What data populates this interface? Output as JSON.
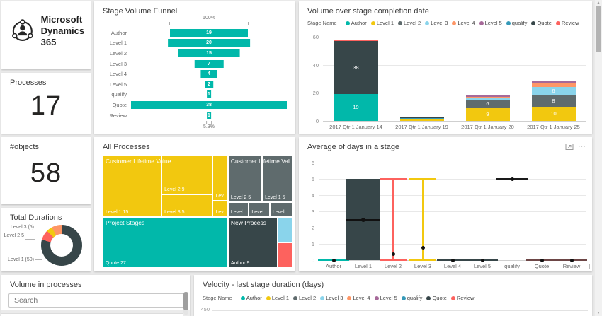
{
  "icons": {
    "up": "▲",
    "down": "▼",
    "more_options": "⋯"
  },
  "logo_tile": {
    "brand_line1": "Microsoft",
    "brand_line2": "Dynamics 365"
  },
  "processes_tile": {
    "title": "Processes",
    "value": "17"
  },
  "objects_tile": {
    "title": "#objects",
    "value": "58"
  },
  "durations_tile": {
    "title": "Total Durations"
  },
  "funnel_tile": {
    "title": "Stage Volume Funnel"
  },
  "volume_tile": {
    "title": "Volume over stage completion date",
    "legend_title": "Stage Name"
  },
  "all_processes_tile": {
    "title": "All Processes"
  },
  "avg_tile": {
    "title": "Average of days in a stage"
  },
  "search_tile": {
    "title": "Volume in processes",
    "search_placeholder": "Search"
  },
  "velocity_tile": {
    "title": "Velocity - last stage duration (days)",
    "legend_title": "Stage Name",
    "y_top_label": "450"
  },
  "stages": [
    {
      "name": "Author",
      "color": "#01B8AA"
    },
    {
      "name": "Level 1",
      "color": "#F2C80F"
    },
    {
      "name": "Level 2",
      "color": "#5F6B6D"
    },
    {
      "name": "Level 3",
      "color": "#8AD4EB"
    },
    {
      "name": "Level 4",
      "color": "#FE9666"
    },
    {
      "name": "Level 5",
      "color": "#A66999"
    },
    {
      "name": "qualify",
      "color": "#3599B8"
    },
    {
      "name": "Quote",
      "color": "#374649"
    },
    {
      "name": "Review",
      "color": "#FD625E"
    }
  ],
  "chart_data": [
    {
      "id": "stage-volume-funnel",
      "type": "bar",
      "subtype": "funnel",
      "title": "Stage Volume Funnel",
      "categories": [
        "Author",
        "Level 1",
        "Level 2",
        "Level 3",
        "Level 4",
        "Level 5",
        "qualify",
        "Quote",
        "Review"
      ],
      "values": [
        19,
        20,
        15,
        7,
        4,
        2,
        1,
        38,
        1
      ],
      "bar_color": "#01B8AA",
      "top_annotation": "100%",
      "bottom_annotation": "5.3%"
    },
    {
      "id": "volume-over-stage-completion-date",
      "type": "bar",
      "subtype": "stacked-column",
      "title": "Volume over stage completion date",
      "legend_title": "Stage Name",
      "legend_position": "top",
      "categories": [
        "2017 Qtr 1 January 14",
        "2017 Qtr 1 January 19",
        "2017 Qtr 1 January 20",
        "2017 Qtr 1 January 25"
      ],
      "series": [
        {
          "name": "Author",
          "color": "#01B8AA",
          "values": [
            19,
            0,
            0,
            0
          ]
        },
        {
          "name": "Level 1",
          "color": "#F2C80F",
          "values": [
            0,
            1,
            9,
            10
          ]
        },
        {
          "name": "Level 2",
          "color": "#5F6B6D",
          "values": [
            0,
            0,
            6,
            8
          ]
        },
        {
          "name": "Level 3",
          "color": "#8AD4EB",
          "values": [
            0,
            0,
            1,
            6
          ]
        },
        {
          "name": "Level 4",
          "color": "#FE9666",
          "values": [
            0,
            0,
            1,
            3
          ]
        },
        {
          "name": "Level 5",
          "color": "#A66999",
          "values": [
            0,
            0,
            1,
            1
          ]
        },
        {
          "name": "qualify",
          "color": "#3599B8",
          "values": [
            0,
            1,
            0,
            0
          ]
        },
        {
          "name": "Quote",
          "color": "#374649",
          "values": [
            38,
            1,
            0,
            0
          ]
        },
        {
          "name": "Review",
          "color": "#FD625E",
          "values": [
            1,
            0,
            0,
            0
          ]
        }
      ],
      "ylim": [
        0,
        60
      ],
      "yticks": [
        0,
        20,
        40,
        60
      ],
      "grid": true
    },
    {
      "id": "all-processes-treemap",
      "type": "treemap",
      "title": "All Processes",
      "groups": [
        "Customer Lifetime Value",
        "Customer Lifetime Val...",
        "Project Stages",
        "New Process"
      ],
      "cells": [
        "Level 1 15",
        "Level 2 9",
        "Level 3 5",
        "Lev...",
        "Lev...",
        "Level 2 5",
        "Level 1 5",
        "Level...",
        "Level...",
        "Level...",
        "Quote 27",
        "Author 9",
        "",
        ""
      ],
      "cell_colors": [
        "#F2C80F",
        "#F2C80F",
        "#F2C80F",
        "#F2C80F",
        "#F2C80F",
        "#5F6B6D",
        "#5F6B6D",
        "#5F6B6D",
        "#5F6B6D",
        "#5F6B6D",
        "#01B8AA",
        "#374649",
        "#8AD4EB",
        "#FD625E"
      ]
    },
    {
      "id": "average-days-in-stage",
      "type": "line",
      "subtype": "candlestick",
      "title": "Average of days in a stage",
      "categories": [
        "Author",
        "Level 1",
        "Level 2",
        "Level 3",
        "Level 4",
        "Level 5",
        "qualify",
        "Quote",
        "Review"
      ],
      "ylim": [
        0,
        6
      ],
      "yticks": [
        0,
        1,
        2,
        3,
        4,
        5,
        6
      ],
      "grid": true,
      "marks": [
        {
          "name": "Author",
          "kind": "flat",
          "value": 0,
          "color": "#01B8AA"
        },
        {
          "name": "Level 1",
          "kind": "box",
          "low": 0,
          "high": 5,
          "median": 2.5,
          "color": "#374649"
        },
        {
          "name": "Level 2",
          "kind": "range",
          "low": 0,
          "high": 5,
          "dot": 0.35,
          "color": "#FD625E"
        },
        {
          "name": "Level 3",
          "kind": "range",
          "low": 0,
          "high": 5,
          "dot": 0.75,
          "color": "#F2C80F"
        },
        {
          "name": "Level 4",
          "kind": "flat",
          "value": 0,
          "color": "#374649"
        },
        {
          "name": "Level 5",
          "kind": "flat",
          "value": 0,
          "color": "#374649"
        },
        {
          "name": "qualify",
          "kind": "flat",
          "value": 5,
          "color": "#1a1a1a"
        },
        {
          "name": "Quote",
          "kind": "flat",
          "value": 0,
          "color": "#6d4646"
        },
        {
          "name": "Review",
          "kind": "flat",
          "value": 0,
          "color": "#6d4646"
        }
      ]
    },
    {
      "id": "total-durations-donut",
      "type": "pie",
      "donut": true,
      "title": "Total Durations",
      "slices": [
        {
          "label": "Level 1 (50)",
          "value": 50,
          "color": "#374649"
        },
        {
          "label": "Level 2 5",
          "value": 5,
          "color": "#FD625E"
        },
        {
          "label": "",
          "value": 3,
          "color": "#F2C80F"
        },
        {
          "label": "Level 3 (5)",
          "value": 5,
          "color": "#FE9666"
        }
      ]
    },
    {
      "id": "velocity-last-stage-duration",
      "type": "bar",
      "subtype": "stacked-column",
      "title": "Velocity - last stage duration (days)",
      "legend_title": "Stage Name",
      "visible_yticks": [
        450
      ]
    }
  ]
}
